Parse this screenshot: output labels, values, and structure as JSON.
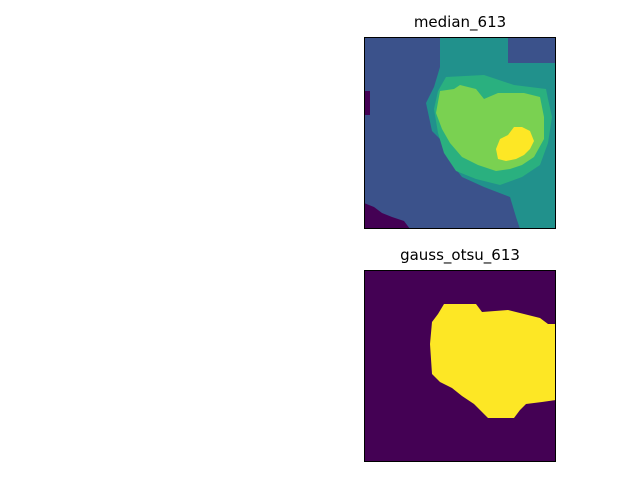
{
  "figure": {
    "panels": [
      {
        "title": "median_613",
        "kind": "labeled segmentation image",
        "colors": {
          "level_0": "#440154",
          "level_1": "#3b528b",
          "level_2": "#21918c",
          "level_3": "#2ab07f",
          "level_4": "#7ad151",
          "level_5": "#fde725"
        }
      },
      {
        "title": "gauss_otsu_613",
        "kind": "binary threshold mask",
        "colors": {
          "background": "#440154",
          "foreground": "#fde725"
        }
      }
    ]
  }
}
